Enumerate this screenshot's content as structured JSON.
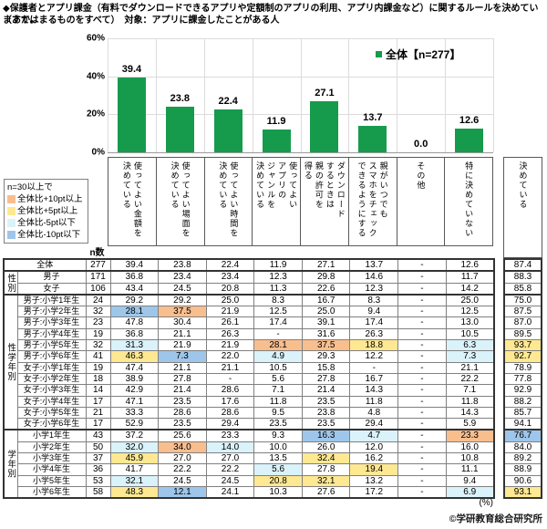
{
  "title": {
    "line1": "◆保護者とアプリ課金（有料でダウンロードできるアプリや定額制のアプリの利用、アプリ内課金など）に関するルールを決めていますか。",
    "line2": "（あてはまるものをすべて）　対象：アプリに課金したことがある人"
  },
  "chart_data": {
    "type": "bar",
    "title": "",
    "categories": [
      "使ってよい金額を\n決めている",
      "使ってよい場面を\n決めている",
      "使ってよい時間を\n決めている",
      "使ってよい\nアプリの\nジャンルを\n決めている",
      "ダウンロード\nするときは\n親の許可を\n得る",
      "親がいつでも\nスマホをチェック\nできるようにする",
      "その他",
      "特に決めていない"
    ],
    "values": [
      39.4,
      23.8,
      22.4,
      11.9,
      27.1,
      13.7,
      0.0,
      12.6
    ],
    "value_labels": [
      "39.4",
      "23.8",
      "22.4",
      "11.9",
      "27.1",
      "13.7",
      "0.0",
      "12.6"
    ],
    "side_category": "決めている",
    "legend": "全体【n=277】",
    "xlabel": "",
    "ylabel": "",
    "ylim": [
      0,
      60
    ],
    "yticks": [
      {
        "label": "60%",
        "v": 60
      },
      {
        "label": "40%",
        "v": 40
      },
      {
        "label": "20%",
        "v": 20
      },
      {
        "label": "0%",
        "v": 0
      }
    ],
    "grid": true,
    "legend_position": "top-right",
    "bar_color": "#169b4d"
  },
  "note_box": {
    "title": "n=30以上で",
    "items": [
      {
        "label": "全体比+10pt以上",
        "key": "orange"
      },
      {
        "label": "全体比+5pt以上",
        "key": "yellow"
      },
      {
        "label": "全体比-5pt以下",
        "key": "cyan"
      },
      {
        "label": "全体比-10pt以下",
        "key": "blue"
      }
    ]
  },
  "hl_colors": {
    "orange": "#f9be8e",
    "yellow": "#ffe892",
    "cyan": "#daf2f9",
    "blue": "#9ec6ea"
  },
  "table": {
    "n_header": "n数",
    "unit": "(%)",
    "groups": [
      {
        "label": "",
        "rows": [
          {
            "label": "全体",
            "n": "277",
            "values": [
              "39.4",
              "23.8",
              "22.4",
              "11.9",
              "27.1",
              "13.7",
              "-",
              "12.6"
            ],
            "k": "87.4",
            "hl": {},
            "k_hl": ""
          }
        ]
      },
      {
        "label": "性別",
        "rows": [
          {
            "label": "男子",
            "n": "171",
            "values": [
              "36.8",
              "23.4",
              "23.4",
              "12.3",
              "29.8",
              "14.6",
              "-",
              "11.7"
            ],
            "k": "88.3",
            "hl": {},
            "k_hl": ""
          },
          {
            "label": "女子",
            "n": "106",
            "values": [
              "43.4",
              "24.5",
              "20.8",
              "11.3",
              "22.6",
              "12.3",
              "-",
              "14.2"
            ],
            "k": "85.8",
            "hl": {},
            "k_hl": ""
          }
        ]
      },
      {
        "label": "性学年別",
        "rows": [
          {
            "label": "男子:小学1年生",
            "n": "24",
            "values": [
              "29.2",
              "29.2",
              "25.0",
              "8.3",
              "16.7",
              "8.3",
              "-",
              "25.0"
            ],
            "k": "75.0",
            "hl": {},
            "k_hl": ""
          },
          {
            "label": "男子:小学2年生",
            "n": "32",
            "values": [
              "28.1",
              "37.5",
              "21.9",
              "12.5",
              "25.0",
              "9.4",
              "-",
              "12.5"
            ],
            "k": "87.5",
            "hl": {
              "0": "blue",
              "1": "orange"
            },
            "k_hl": ""
          },
          {
            "label": "男子:小学3年生",
            "n": "23",
            "values": [
              "47.8",
              "30.4",
              "26.1",
              "17.4",
              "39.1",
              "17.4",
              "-",
              "13.0"
            ],
            "k": "87.0",
            "hl": {},
            "k_hl": ""
          },
          {
            "label": "男子:小学4年生",
            "n": "19",
            "values": [
              "36.8",
              "21.1",
              "26.3",
              "-",
              "31.6",
              "26.3",
              "-",
              "10.5"
            ],
            "k": "89.5",
            "hl": {},
            "k_hl": ""
          },
          {
            "label": "男子:小学5年生",
            "n": "32",
            "values": [
              "31.3",
              "21.9",
              "21.9",
              "28.1",
              "37.5",
              "18.8",
              "-",
              "6.3"
            ],
            "k": "93.7",
            "hl": {
              "0": "cyan",
              "3": "orange",
              "4": "orange",
              "5": "yellow",
              "7": "cyan"
            },
            "k_hl": "yellow"
          },
          {
            "label": "男子:小学6年生",
            "n": "41",
            "values": [
              "46.3",
              "7.3",
              "22.0",
              "4.9",
              "29.3",
              "12.2",
              "-",
              "7.3"
            ],
            "k": "92.7",
            "hl": {
              "0": "yellow",
              "1": "blue",
              "3": "cyan",
              "7": "cyan"
            },
            "k_hl": "yellow"
          },
          {
            "label": "女子:小学1年生",
            "n": "19",
            "values": [
              "47.4",
              "21.1",
              "21.1",
              "10.5",
              "15.8",
              "-",
              "-",
              "21.1"
            ],
            "k": "78.9",
            "hl": {},
            "k_hl": ""
          },
          {
            "label": "女子:小学2年生",
            "n": "18",
            "values": [
              "38.9",
              "27.8",
              "-",
              "5.6",
              "27.8",
              "16.7",
              "-",
              "22.2"
            ],
            "k": "77.8",
            "hl": {},
            "k_hl": ""
          },
          {
            "label": "女子:小学3年生",
            "n": "14",
            "values": [
              "42.9",
              "21.4",
              "28.6",
              "7.1",
              "21.4",
              "14.3",
              "-",
              "7.1"
            ],
            "k": "92.9",
            "hl": {},
            "k_hl": ""
          },
          {
            "label": "女子:小学4年生",
            "n": "17",
            "values": [
              "47.1",
              "23.5",
              "17.6",
              "11.8",
              "23.5",
              "11.8",
              "-",
              "11.8"
            ],
            "k": "88.2",
            "hl": {},
            "k_hl": ""
          },
          {
            "label": "女子:小学5年生",
            "n": "21",
            "values": [
              "33.3",
              "28.6",
              "28.6",
              "9.5",
              "23.8",
              "4.8",
              "-",
              "14.3"
            ],
            "k": "85.7",
            "hl": {},
            "k_hl": ""
          },
          {
            "label": "女子:小学6年生",
            "n": "17",
            "values": [
              "52.9",
              "23.5",
              "29.4",
              "23.5",
              "23.5",
              "29.4",
              "-",
              "5.9"
            ],
            "k": "94.1",
            "hl": {},
            "k_hl": ""
          }
        ]
      },
      {
        "label": "学年別",
        "rows": [
          {
            "label": "小学1年生",
            "n": "43",
            "values": [
              "37.2",
              "25.6",
              "23.3",
              "9.3",
              "16.3",
              "4.7",
              "-",
              "23.3"
            ],
            "k": "76.7",
            "hl": {
              "4": "blue",
              "5": "cyan",
              "7": "orange"
            },
            "k_hl": "blue"
          },
          {
            "label": "小学2年生",
            "n": "50",
            "values": [
              "32.0",
              "34.0",
              "14.0",
              "10.0",
              "26.0",
              "12.0",
              "-",
              "16.0"
            ],
            "k": "84.0",
            "hl": {
              "0": "cyan",
              "1": "orange",
              "2": "cyan"
            },
            "k_hl": ""
          },
          {
            "label": "小学3年生",
            "n": "37",
            "values": [
              "45.9",
              "27.0",
              "27.0",
              "13.5",
              "32.4",
              "16.2",
              "-",
              "10.8"
            ],
            "k": "89.2",
            "hl": {
              "0": "yellow",
              "4": "yellow"
            },
            "k_hl": ""
          },
          {
            "label": "小学4年生",
            "n": "36",
            "values": [
              "41.7",
              "22.2",
              "22.2",
              "5.6",
              "27.8",
              "19.4",
              "-",
              "11.1"
            ],
            "k": "88.9",
            "hl": {
              "3": "cyan",
              "5": "yellow"
            },
            "k_hl": ""
          },
          {
            "label": "小学5年生",
            "n": "53",
            "values": [
              "32.1",
              "24.5",
              "24.5",
              "20.8",
              "32.1",
              "13.2",
              "-",
              "9.4"
            ],
            "k": "90.6",
            "hl": {
              "0": "cyan",
              "3": "yellow",
              "4": "yellow"
            },
            "k_hl": ""
          },
          {
            "label": "小学6年生",
            "n": "58",
            "values": [
              "48.3",
              "12.1",
              "24.1",
              "10.3",
              "27.6",
              "17.2",
              "-",
              "6.9"
            ],
            "k": "93.1",
            "hl": {
              "0": "yellow",
              "1": "blue",
              "7": "cyan"
            },
            "k_hl": "yellow"
          }
        ]
      }
    ]
  },
  "copyright": "©学研教育総合研究所"
}
